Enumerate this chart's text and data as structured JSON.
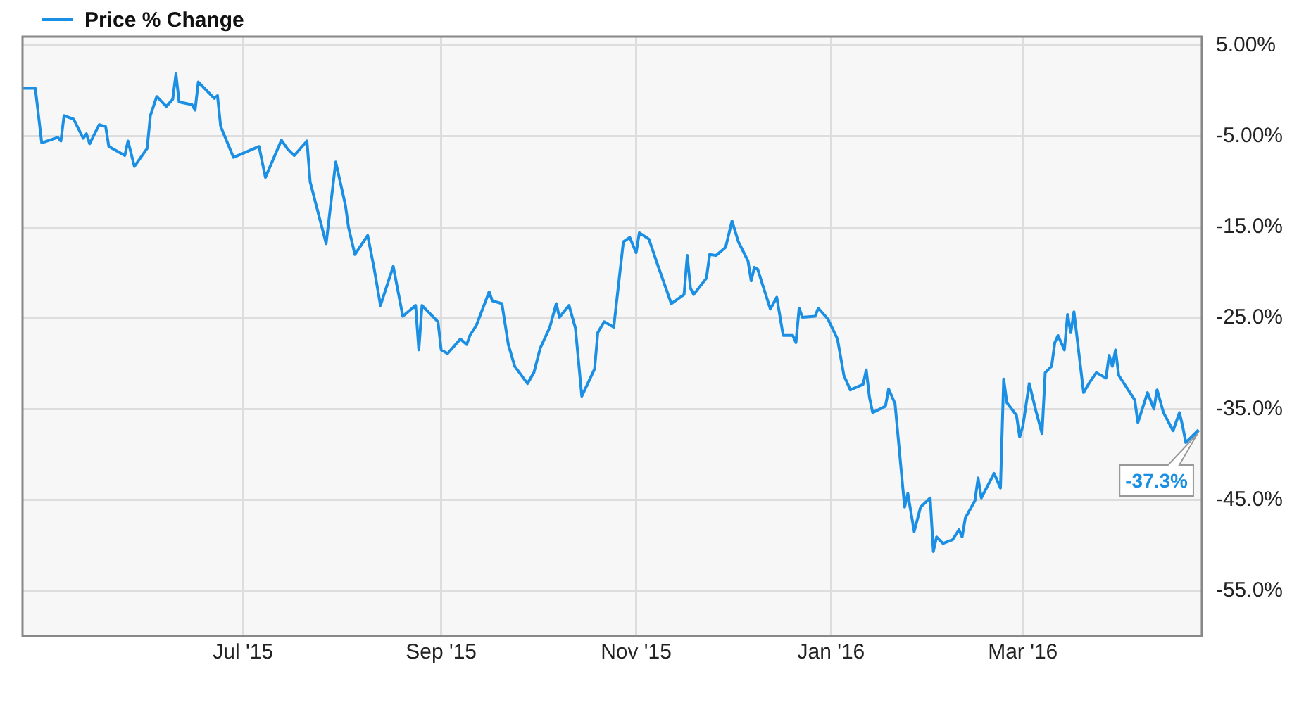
{
  "chart_data": {
    "type": "line",
    "legend": "top left",
    "grid": true,
    "xlim": [
      "2015-04-23",
      "2016-04-26"
    ],
    "xticks": [
      {
        "value": "2015-07-01",
        "label": "Jul '15"
      },
      {
        "value": "2015-09-01",
        "label": "Sep '15"
      },
      {
        "value": "2015-11-01",
        "label": "Nov '15"
      },
      {
        "value": "2016-01-01",
        "label": "Jan '16"
      },
      {
        "value": "2016-03-01",
        "label": "Mar '16"
      }
    ],
    "ylim": [
      -60,
      6
    ],
    "yticks": [
      {
        "value": 5,
        "label": "5.00%"
      },
      {
        "value": -5,
        "label": "-5.00%"
      },
      {
        "value": -15,
        "label": "-15.0%"
      },
      {
        "value": -25,
        "label": "-25.0%"
      },
      {
        "value": -35,
        "label": "-35.0%"
      },
      {
        "value": -45,
        "label": "-45.0%"
      },
      {
        "value": -55,
        "label": "-55.0%"
      }
    ],
    "annotations": [
      {
        "text": "-37.3%",
        "x": "2016-04-25",
        "y": -37.3
      }
    ],
    "series": [
      {
        "name": "Price % Change",
        "color": "#1a8fe3",
        "x": [
          "2015-04-23",
          "2015-04-27",
          "2015-04-29",
          "2015-05-04",
          "2015-05-05",
          "2015-05-06",
          "2015-05-09",
          "2015-05-12",
          "2015-05-13",
          "2015-05-14",
          "2015-05-17",
          "2015-05-19",
          "2015-05-20",
          "2015-05-25",
          "2015-05-26",
          "2015-05-28",
          "2015-06-01",
          "2015-06-02",
          "2015-06-04",
          "2015-06-07",
          "2015-06-09",
          "2015-06-10",
          "2015-06-11",
          "2015-06-15",
          "2015-06-16",
          "2015-06-17",
          "2015-06-22",
          "2015-06-23",
          "2015-06-24",
          "2015-06-28",
          "2015-06-30",
          "2015-07-06",
          "2015-07-08",
          "2015-07-13",
          "2015-07-15",
          "2015-07-17",
          "2015-07-21",
          "2015-07-22",
          "2015-07-27",
          "2015-07-30",
          "2015-08-02",
          "2015-08-03",
          "2015-08-05",
          "2015-08-09",
          "2015-08-11",
          "2015-08-13",
          "2015-08-17",
          "2015-08-20",
          "2015-08-24",
          "2015-08-25",
          "2015-08-26",
          "2015-08-31",
          "2015-09-01",
          "2015-09-03",
          "2015-09-07",
          "2015-09-09",
          "2015-09-10",
          "2015-09-12",
          "2015-09-16",
          "2015-09-17",
          "2015-09-20",
          "2015-09-22",
          "2015-09-24",
          "2015-09-28",
          "2015-09-30",
          "2015-10-02",
          "2015-10-05",
          "2015-10-07",
          "2015-10-08",
          "2015-10-11",
          "2015-10-13",
          "2015-10-15",
          "2015-10-19",
          "2015-10-20",
          "2015-10-22",
          "2015-10-25",
          "2015-10-28",
          "2015-10-30",
          "2015-11-01",
          "2015-11-02",
          "2015-11-05",
          "2015-11-08",
          "2015-11-12",
          "2015-11-16",
          "2015-11-17",
          "2015-11-18",
          "2015-11-19",
          "2015-11-23",
          "2015-11-24",
          "2015-11-26",
          "2015-11-29",
          "2015-12-01",
          "2015-12-03",
          "2015-12-06",
          "2015-12-07",
          "2015-12-08",
          "2015-12-09",
          "2015-12-11",
          "2015-12-13",
          "2015-12-15",
          "2015-12-17",
          "2015-12-20",
          "2015-12-21",
          "2015-12-22",
          "2015-12-23",
          "2015-12-27",
          "2015-12-28",
          "2015-12-31",
          "2016-01-03",
          "2016-01-05",
          "2016-01-07",
          "2016-01-11",
          "2016-01-12",
          "2016-01-13",
          "2016-01-14",
          "2016-01-18",
          "2016-01-19",
          "2016-01-21",
          "2016-01-24",
          "2016-01-25",
          "2016-01-27",
          "2016-01-29",
          "2016-02-01",
          "2016-02-02",
          "2016-02-03",
          "2016-02-05",
          "2016-02-08",
          "2016-02-10",
          "2016-02-11",
          "2016-02-12",
          "2016-02-15",
          "2016-02-16",
          "2016-02-17",
          "2016-02-21",
          "2016-02-23",
          "2016-02-24",
          "2016-02-25",
          "2016-02-28",
          "2016-02-29",
          "2016-03-01",
          "2016-03-03",
          "2016-03-05",
          "2016-03-07",
          "2016-03-08",
          "2016-03-10",
          "2016-03-11",
          "2016-03-12",
          "2016-03-14",
          "2016-03-15",
          "2016-03-16",
          "2016-03-17",
          "2016-03-20",
          "2016-03-22",
          "2016-03-24",
          "2016-03-27",
          "2016-03-28",
          "2016-03-29",
          "2016-03-30",
          "2016-03-31",
          "2016-04-05",
          "2016-04-06",
          "2016-04-09",
          "2016-04-11",
          "2016-04-12",
          "2016-04-14",
          "2016-04-17",
          "2016-04-19",
          "2016-04-20",
          "2016-04-21",
          "2016-04-25"
        ],
        "values": [
          0.3,
          0.3,
          -5.7,
          -5.1,
          -5.5,
          -2.7,
          -3.1,
          -5.2,
          -4.7,
          -5.8,
          -3.7,
          -3.9,
          -6.1,
          -7.1,
          -5.5,
          -8.3,
          -6.3,
          -2.7,
          -0.6,
          -1.7,
          -0.9,
          1.9,
          -1.2,
          -1.5,
          -2.1,
          1.0,
          -0.8,
          -0.5,
          -3.9,
          -7.3,
          -7.0,
          -6.1,
          -9.5,
          -5.4,
          -6.4,
          -7.1,
          -5.5,
          -10.0,
          -16.8,
          -7.8,
          -12.5,
          -15.0,
          -18.0,
          -15.9,
          -19.5,
          -23.6,
          -19.3,
          -24.8,
          -23.6,
          -28.5,
          -23.6,
          -25.4,
          -28.5,
          -28.9,
          -27.3,
          -27.9,
          -26.9,
          -25.8,
          -22.1,
          -23.1,
          -23.4,
          -27.9,
          -30.3,
          -32.2,
          -31.0,
          -28.3,
          -26.0,
          -23.4,
          -24.9,
          -23.6,
          -26.1,
          -33.6,
          -30.6,
          -26.6,
          -25.4,
          -26.0,
          -16.6,
          -16.1,
          -17.8,
          -15.6,
          -16.3,
          -19.4,
          -23.4,
          -22.4,
          -18.1,
          -21.7,
          -22.4,
          -20.6,
          -18.0,
          -18.1,
          -17.2,
          -14.3,
          -16.6,
          -18.7,
          -20.9,
          -19.4,
          -19.6,
          -21.8,
          -24.0,
          -22.7,
          -26.9,
          -26.9,
          -27.7,
          -23.9,
          -24.9,
          -24.8,
          -23.9,
          -25.1,
          -27.3,
          -31.3,
          -32.9,
          -32.3,
          -30.7,
          -33.7,
          -35.4,
          -34.7,
          -32.8,
          -34.4,
          -45.8,
          -44.3,
          -48.5,
          -45.8,
          -44.8,
          -50.7,
          -49.1,
          -49.8,
          -49.4,
          -48.3,
          -49.1,
          -47.0,
          -45.1,
          -42.6,
          -44.8,
          -42.1,
          -43.7,
          -31.7,
          -34.3,
          -35.7,
          -38.1,
          -36.9,
          -32.2,
          -35.1,
          -37.7,
          -31.0,
          -30.3,
          -27.7,
          -26.9,
          -28.5,
          -24.6,
          -26.6,
          -24.3,
          -33.2,
          -32.0,
          -31.0,
          -31.6,
          -29.1,
          -30.3,
          -28.5,
          -31.3,
          -34.0,
          -36.5,
          -33.2,
          -35.0,
          -32.9,
          -35.4,
          -37.4,
          -35.4,
          -36.9,
          -38.7,
          -37.3
        ]
      }
    ]
  }
}
